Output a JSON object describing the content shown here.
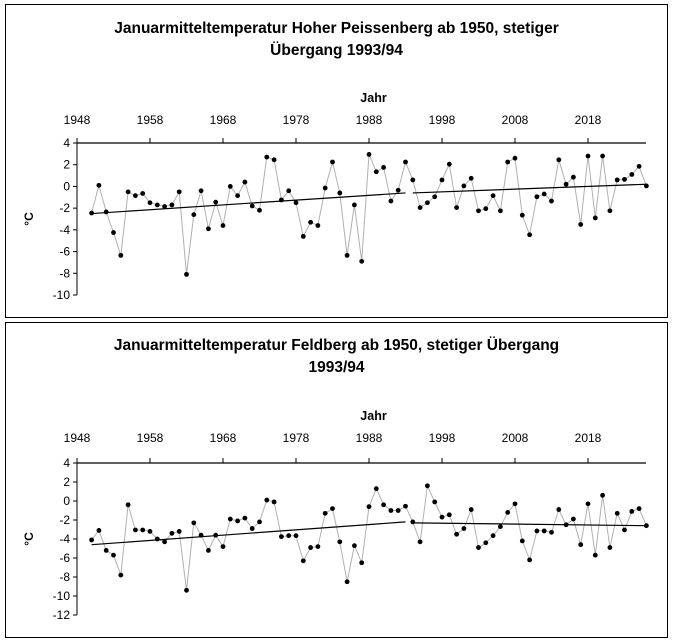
{
  "chart_data": [
    {
      "type": "line",
      "title_lines": [
        "Januarmitteltemperatur Hoher Peissenberg ab 1950, stetiger",
        "Übergang 1993/94"
      ],
      "xlabel": "Jahr",
      "ylabel": "°C",
      "x_ticks": [
        "1948",
        "1958",
        "1968",
        "1978",
        "1988",
        "1998",
        "2008",
        "2018"
      ],
      "xlim": [
        1948,
        2026
      ],
      "ylim": [
        -10,
        4
      ],
      "y_ticks": [
        4,
        2,
        0,
        -2,
        -4,
        -6,
        -8,
        -10
      ],
      "grid": false,
      "x_start": 1950,
      "values": [
        -2.45,
        0.1,
        -2.35,
        -4.25,
        -6.35,
        -0.5,
        -0.85,
        -0.65,
        -1.5,
        -1.7,
        -1.85,
        -1.7,
        -0.5,
        -8.1,
        -2.6,
        -0.4,
        -3.9,
        -1.45,
        -3.6,
        0.0,
        -0.85,
        0.4,
        -1.8,
        -2.2,
        2.7,
        2.45,
        -1.25,
        -0.4,
        -1.5,
        -4.6,
        -3.3,
        -3.6,
        -0.15,
        2.25,
        -0.6,
        -6.35,
        -1.7,
        -6.9,
        2.95,
        1.35,
        1.75,
        -1.35,
        -0.35,
        2.25,
        0.6,
        -1.95,
        -1.5,
        -0.95,
        0.6,
        2.05,
        -1.95,
        0.05,
        0.75,
        -2.25,
        -2.05,
        -0.85,
        -2.25,
        2.25,
        2.6,
        -2.65,
        -4.45,
        -0.95,
        -0.7,
        -1.35,
        2.45,
        0.2,
        0.85,
        -3.5,
        2.8,
        -2.9,
        2.8,
        -2.25,
        0.6,
        0.65,
        1.1,
        1.85,
        0.05
      ],
      "trend_segments": [
        {
          "from": [
            1950,
            -2.5
          ],
          "to": [
            1993,
            -0.6
          ]
        },
        {
          "from": [
            1994,
            -0.6
          ],
          "to": [
            2026,
            0.2
          ]
        }
      ]
    },
    {
      "type": "line",
      "title_lines": [
        "Januarmitteltemperatur Feldberg ab 1950, stetiger Übergang",
        "1993/94"
      ],
      "xlabel": "Jahr",
      "ylabel": "°C",
      "x_ticks": [
        "1948",
        "1958",
        "1968",
        "1978",
        "1988",
        "1998",
        "2008",
        "2018"
      ],
      "xlim": [
        1948,
        2026
      ],
      "ylim": [
        -12,
        4
      ],
      "y_ticks": [
        4,
        2,
        0,
        -2,
        -4,
        -6,
        -8,
        -10,
        -12
      ],
      "grid": false,
      "x_start": 1950,
      "values": [
        -4.1,
        -3.1,
        -5.2,
        -5.7,
        -7.8,
        -0.4,
        -3.05,
        -3.05,
        -3.2,
        -4.0,
        -4.3,
        -3.4,
        -3.2,
        -9.4,
        -2.3,
        -3.6,
        -5.2,
        -3.6,
        -4.8,
        -1.9,
        -2.1,
        -1.8,
        -2.9,
        -2.2,
        0.1,
        -0.1,
        -3.75,
        -3.65,
        -3.65,
        -6.3,
        -4.9,
        -4.8,
        -1.3,
        -0.8,
        -4.3,
        -8.5,
        -4.7,
        -6.5,
        -0.6,
        1.3,
        -0.4,
        -1.0,
        -1.0,
        -0.55,
        -2.2,
        -4.3,
        1.6,
        -0.1,
        -1.7,
        -1.45,
        -3.5,
        -2.9,
        -0.9,
        -4.9,
        -4.4,
        -3.65,
        -2.7,
        -1.2,
        -0.3,
        -4.2,
        -6.2,
        -3.15,
        -3.15,
        -3.3,
        -0.9,
        -2.5,
        -1.9,
        -4.6,
        -0.3,
        -5.7,
        0.6,
        -4.9,
        -1.3,
        -3.05,
        -1.1,
        -0.8,
        -2.6
      ],
      "trend_segments": [
        {
          "from": [
            1950,
            -4.6
          ],
          "to": [
            1993,
            -2.2
          ]
        },
        {
          "from": [
            1994,
            -2.3
          ],
          "to": [
            2026,
            -2.6
          ]
        }
      ]
    }
  ]
}
